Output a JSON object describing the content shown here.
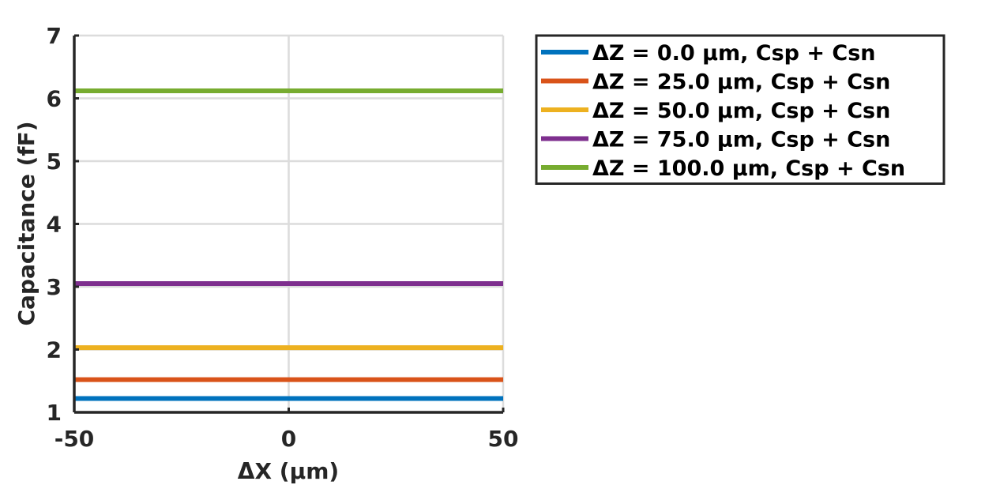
{
  "chart_data": {
    "type": "line",
    "title": "",
    "xlabel": "ΔX (µm)",
    "ylabel": "Capacitance (fF)",
    "xlim": [
      -50,
      50
    ],
    "ylim": [
      1,
      7
    ],
    "xticks": [
      -50,
      0,
      50
    ],
    "yticks": [
      1,
      2,
      3,
      4,
      5,
      6,
      7
    ],
    "grid": true,
    "legend_position": "outside-top-right",
    "x": [
      -50,
      50
    ],
    "series": [
      {
        "name": "ΔZ = 0.0 µm, Csp + Csn",
        "values": [
          1.22,
          1.22
        ],
        "color": "#0072BD"
      },
      {
        "name": "ΔZ = 25.0 µm, Csp + Csn",
        "values": [
          1.52,
          1.52
        ],
        "color": "#D95319"
      },
      {
        "name": "ΔZ = 50.0 µm, Csp + Csn",
        "values": [
          2.03,
          2.03
        ],
        "color": "#EDB120"
      },
      {
        "name": "ΔZ = 75.0 µm, Csp + Csn",
        "values": [
          3.05,
          3.05
        ],
        "color": "#7E2F8E"
      },
      {
        "name": "ΔZ = 100.0 µm, Csp + Csn",
        "values": [
          6.12,
          6.12
        ],
        "color": "#77AC30"
      }
    ]
  }
}
